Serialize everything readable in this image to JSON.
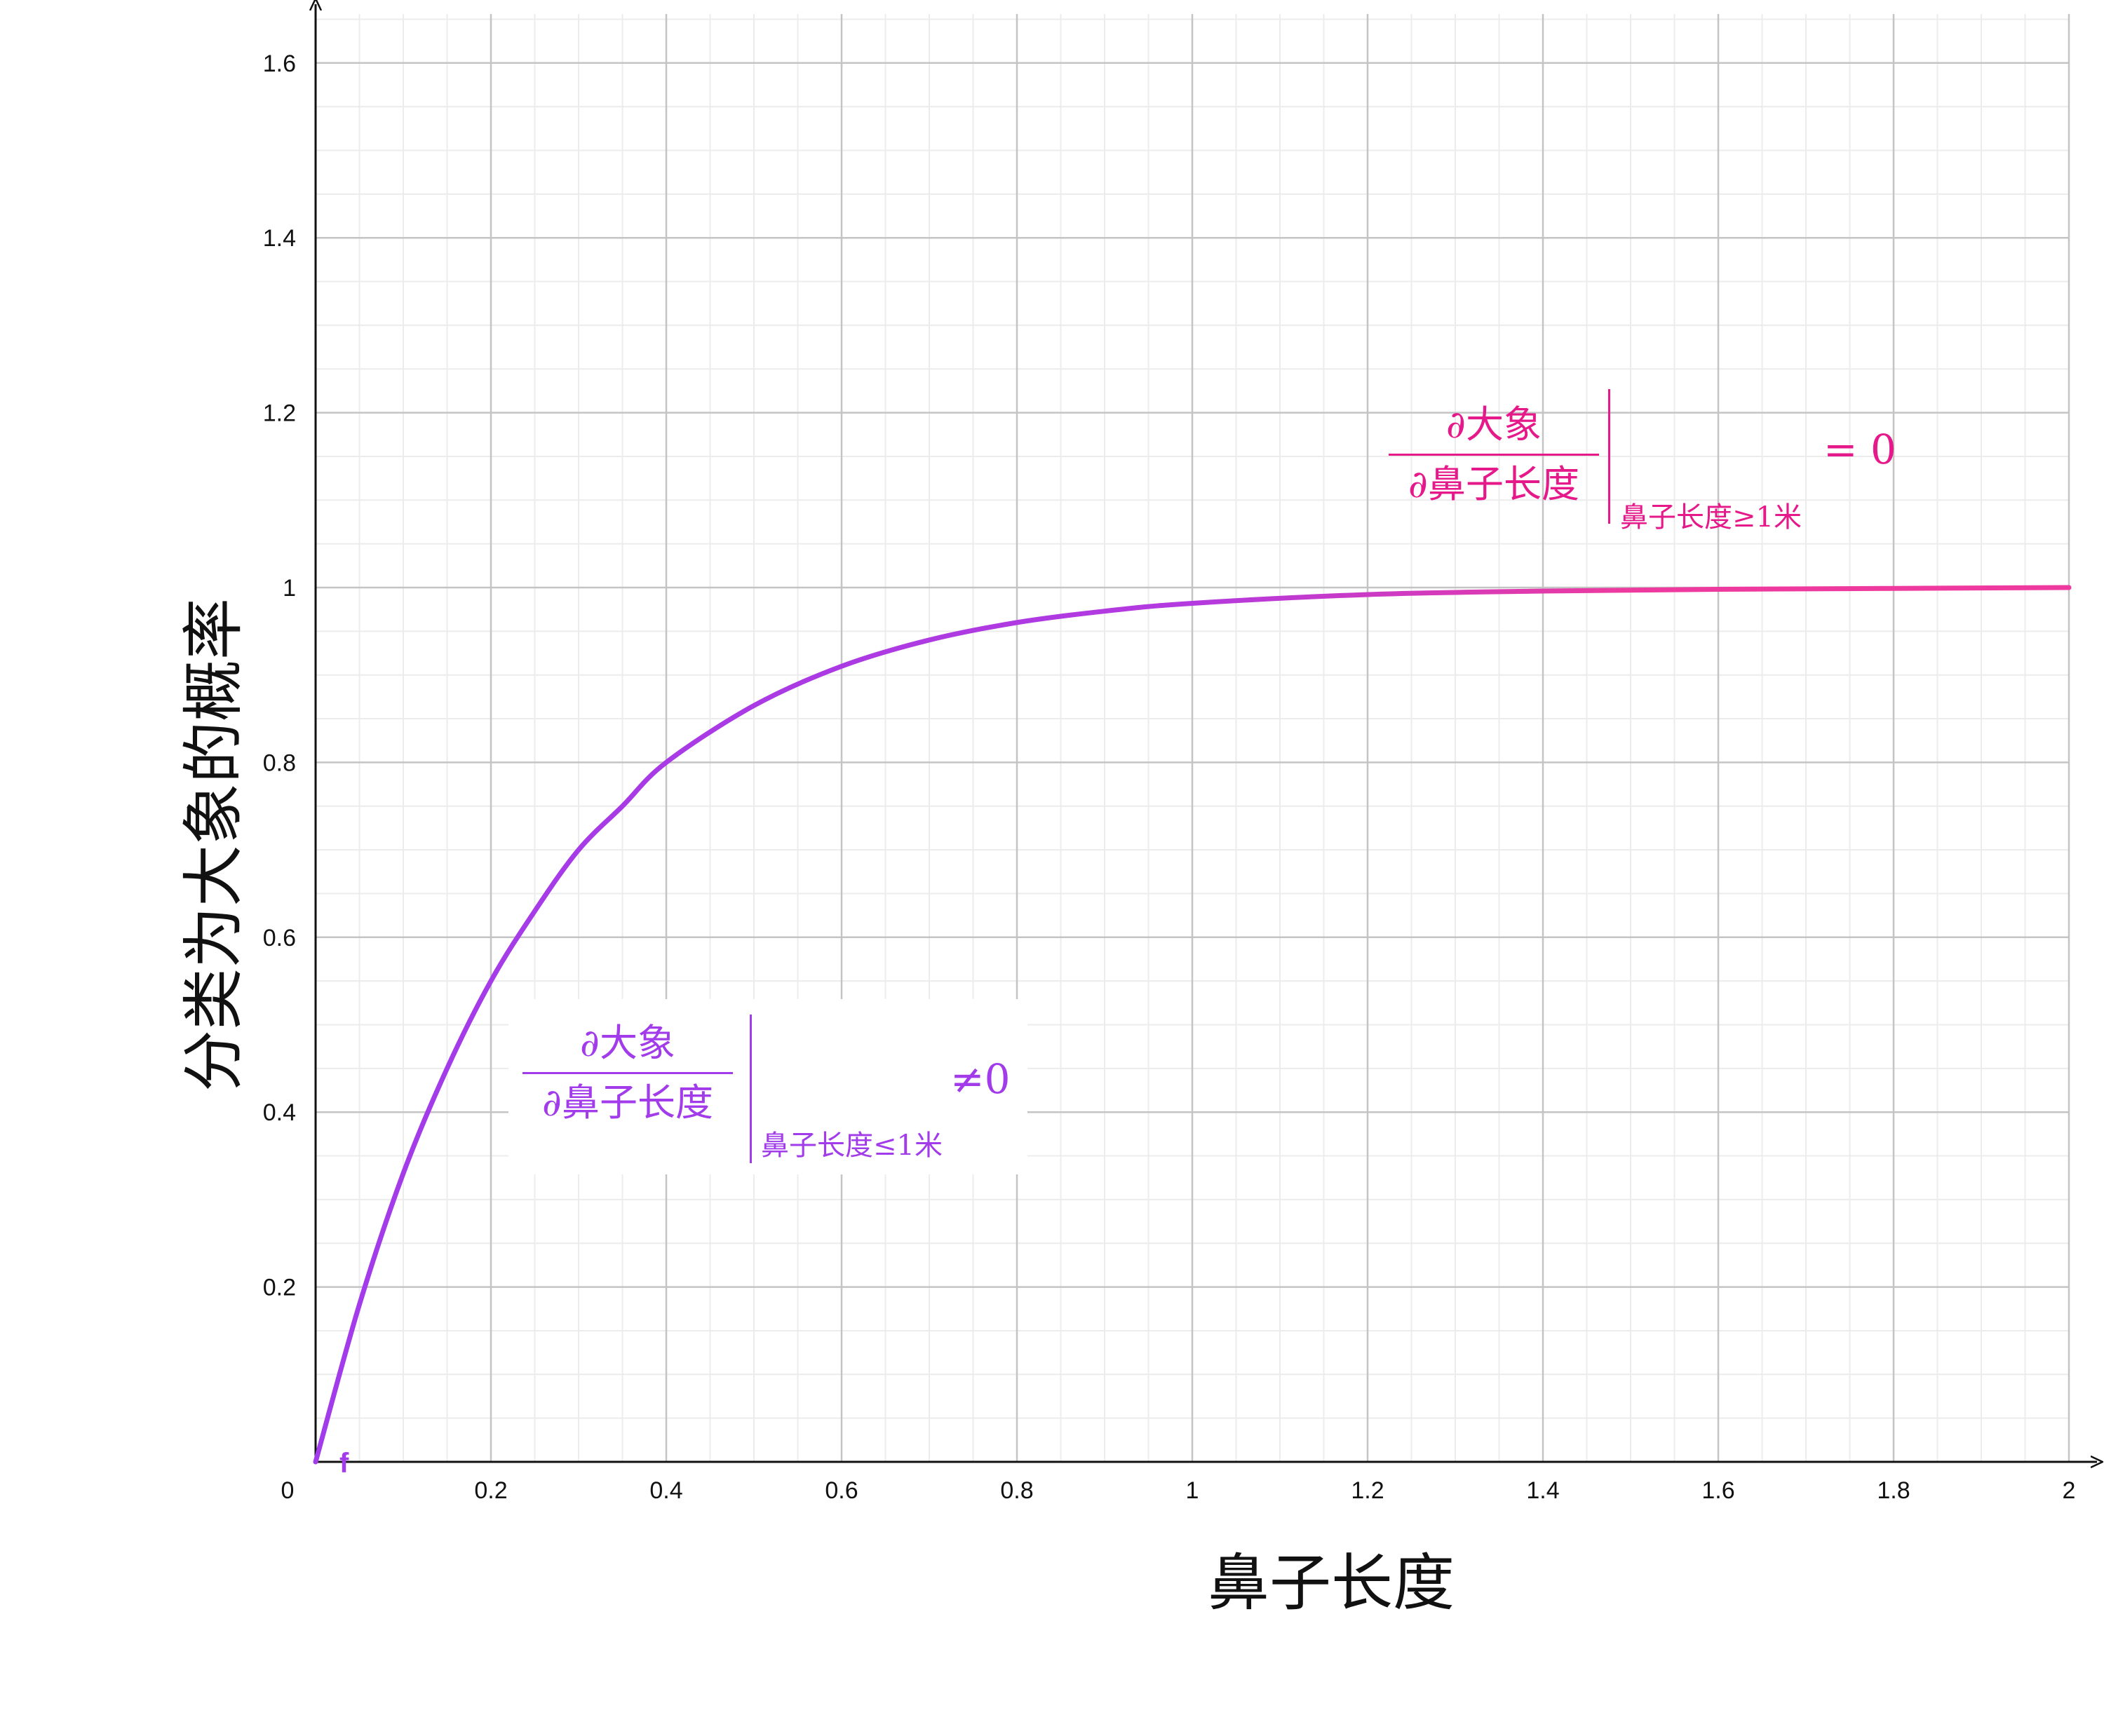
{
  "chart_data": {
    "type": "line",
    "xlabel": "鼻子长度",
    "ylabel": "分类为大象的概率",
    "xlim": [
      0,
      2
    ],
    "ylim": [
      0,
      1.6
    ],
    "x_ticks": [
      "0",
      "0.2",
      "0.4",
      "0.6",
      "0.8",
      "1",
      "1.2",
      "1.4",
      "1.6",
      "1.8",
      "2"
    ],
    "y_ticks": [
      "0.2",
      "0.4",
      "0.6",
      "0.8",
      "1",
      "1.2",
      "1.4",
      "1.6"
    ],
    "x_tick_values": [
      0,
      0.2,
      0.4,
      0.6,
      0.8,
      1,
      1.2,
      1.4,
      1.6,
      1.8,
      2
    ],
    "y_tick_values": [
      0.2,
      0.4,
      0.6,
      0.8,
      1,
      1.2,
      1.4,
      1.6
    ],
    "grid": true,
    "series": [
      {
        "name": "f",
        "x": [
          0,
          0.05,
          0.1,
          0.15,
          0.2,
          0.25,
          0.3,
          0.35,
          0.4,
          0.5,
          0.6,
          0.7,
          0.8,
          0.9,
          1.0,
          1.2,
          1.4,
          1.6,
          1.8,
          2.0
        ],
        "y": [
          0,
          0.18,
          0.33,
          0.45,
          0.55,
          0.63,
          0.7,
          0.75,
          0.8,
          0.865,
          0.91,
          0.94,
          0.96,
          0.973,
          0.982,
          0.992,
          0.996,
          0.998,
          0.999,
          1.0
        ]
      }
    ],
    "annotations": [
      {
        "numerator": "∂大象",
        "denominator": "∂鼻子长度",
        "subscript": "鼻子长度≤1米",
        "relation": "≠0"
      },
      {
        "numerator": "∂大象",
        "denominator": "∂鼻子长度",
        "subscript": "鼻子长度≥1米",
        "relation": "= 0"
      }
    ]
  },
  "colors": {
    "curve_start": "#a23bea",
    "curve_mid": "#b33adf",
    "curve_end": "#ee3a9e",
    "annotation_left": "#a23bea",
    "annotation_right": "#e6198a",
    "grid_major": "#c4c4c4",
    "grid_minor": "#ececec",
    "axis": "#111111"
  }
}
